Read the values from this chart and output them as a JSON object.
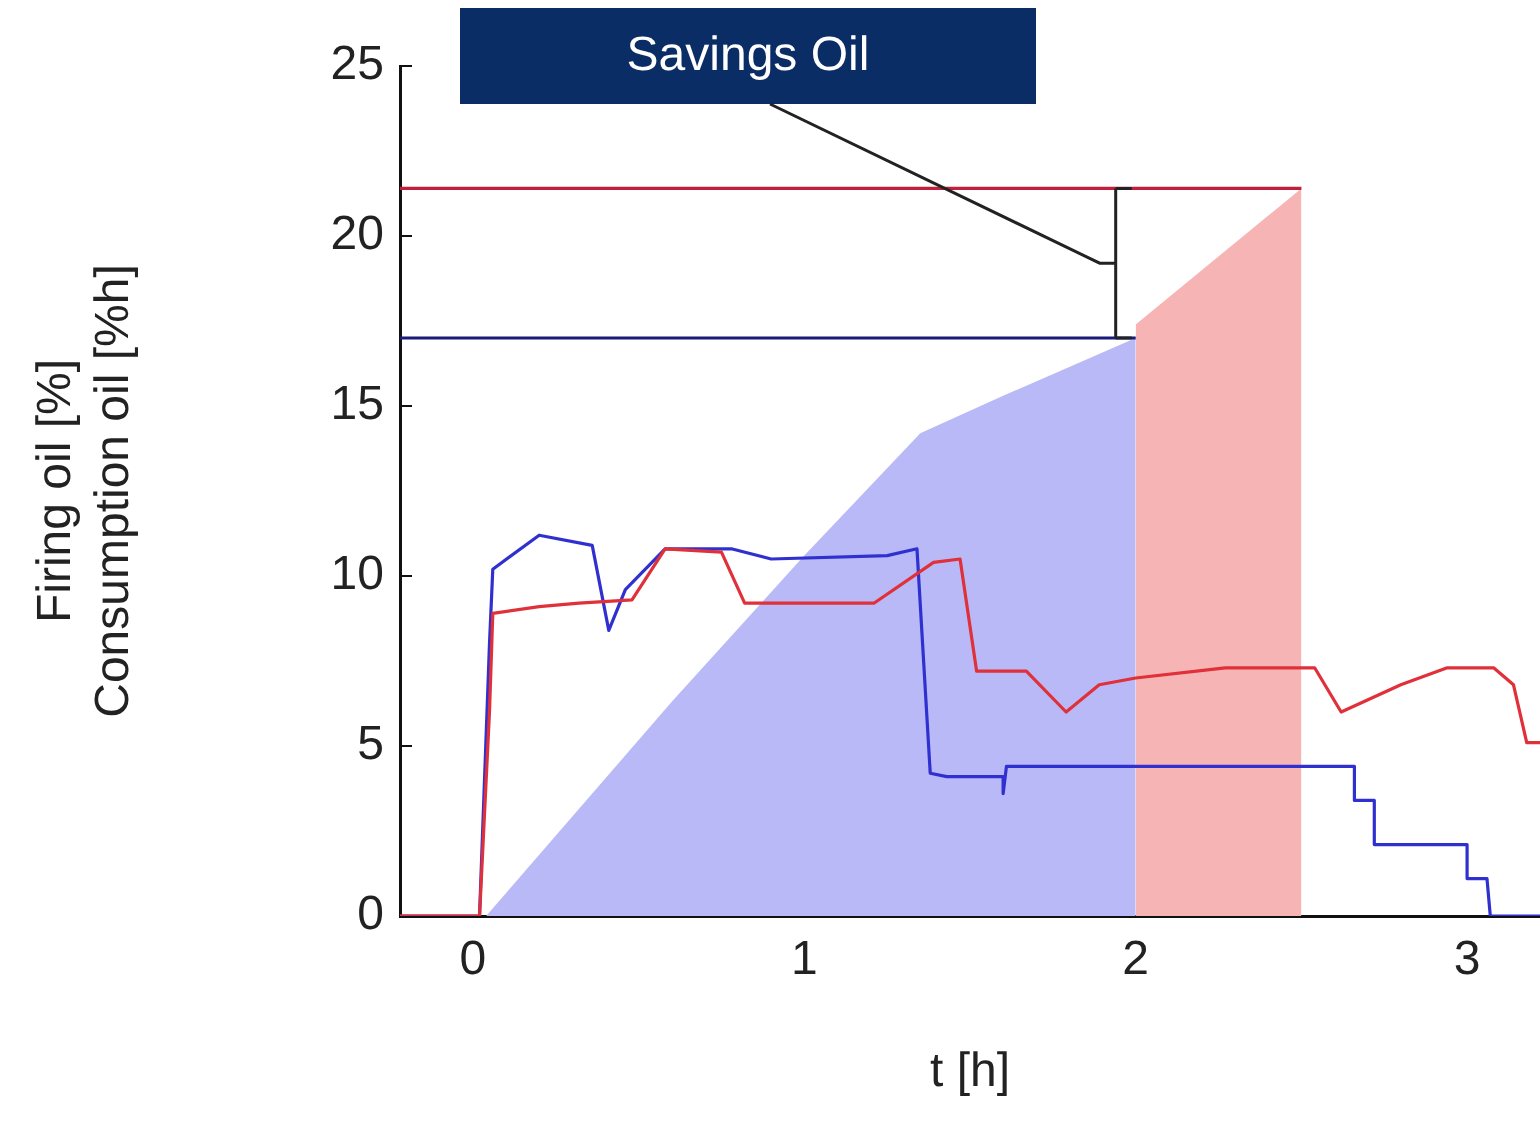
{
  "chart_data": {
    "type": "line",
    "xlabel": "t [h]",
    "ylabel": "Firing oil [%]\nConsumption oil [%h]",
    "xlim": [
      -0.22,
      3.22
    ],
    "ylim": [
      0,
      25
    ],
    "xticks": [
      0,
      1,
      2,
      3
    ],
    "yticks": [
      0,
      5,
      10,
      15,
      20,
      25
    ],
    "grid": false,
    "legend": false,
    "marker": "none",
    "annotations": [
      "Savings Oil"
    ],
    "series": [
      {
        "type": "area",
        "color": "#f7b4b4",
        "x": [
          2.0,
          2.5
        ],
        "values": [
          17.4,
          21.4
        ]
      },
      {
        "type": "area",
        "color": "#b9b9f7",
        "x": [
          0.04,
          0.6,
          1.0,
          1.35,
          1.6,
          2.0
        ],
        "values": [
          0,
          6.3,
          10.6,
          14.2,
          15.3,
          17.0
        ]
      },
      {
        "type": "line",
        "color": "#c0203c",
        "x": [
          -0.22,
          2.5
        ],
        "values": [
          21.4,
          21.4
        ]
      },
      {
        "type": "line",
        "color": "#1a1a7a",
        "x": [
          -0.22,
          2.0
        ],
        "values": [
          17.0,
          17.0
        ]
      },
      {
        "type": "line",
        "color": "#e0303a",
        "x": [
          -0.22,
          0.02,
          0.05,
          0.06,
          0.2,
          0.32,
          0.48,
          0.58,
          0.75,
          0.82,
          1.21,
          1.39,
          1.47,
          1.52,
          1.67,
          1.79,
          1.89,
          2.0,
          2.27,
          2.54,
          2.62,
          2.8,
          2.94,
          3.08,
          3.14,
          3.18,
          3.22
        ],
        "values": [
          0,
          0,
          6,
          8.9,
          9.1,
          9.2,
          9.3,
          10.8,
          10.7,
          9.2,
          9.2,
          10.4,
          10.5,
          7.2,
          7.2,
          6.0,
          6.8,
          7.0,
          7.3,
          7.3,
          6.0,
          6.8,
          7.3,
          7.3,
          6.8,
          5.1,
          5.1
        ]
      },
      {
        "type": "line",
        "color": "#3030d0",
        "x": [
          -0.22,
          0.02,
          0.05,
          0.06,
          0.2,
          0.36,
          0.41,
          0.46,
          0.58,
          0.78,
          0.9,
          1.25,
          1.34,
          1.38,
          1.43,
          1.6,
          1.6,
          1.61,
          2.66,
          2.66,
          2.72,
          2.72,
          3.0,
          3.0,
          3.06,
          3.07,
          3.22
        ],
        "values": [
          0,
          0,
          8,
          10.2,
          11.2,
          10.9,
          8.4,
          9.6,
          10.8,
          10.8,
          10.5,
          10.6,
          10.8,
          4.2,
          4.1,
          4.1,
          3.6,
          4.4,
          4.4,
          3.4,
          3.4,
          2.1,
          2.1,
          1.1,
          1.1,
          0,
          0
        ]
      }
    ]
  }
}
